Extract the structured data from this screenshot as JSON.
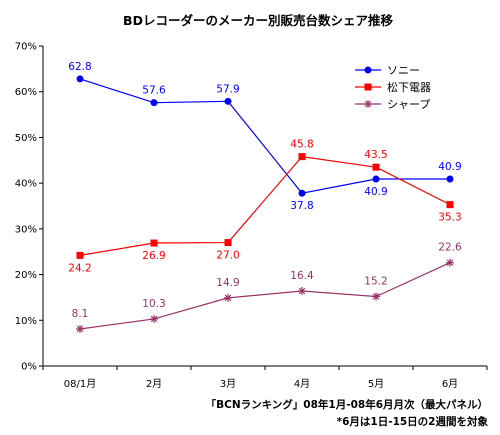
{
  "chart_data": {
    "type": "line",
    "title": "BDレコーダーのメーカー別販売台数シェア推移",
    "categories": [
      "08/1月",
      "2月",
      "3月",
      "4月",
      "5月",
      "6月"
    ],
    "ylim": [
      0,
      70
    ],
    "yticks": [
      "0%",
      "10%",
      "20%",
      "30%",
      "40%",
      "50%",
      "60%",
      "70%"
    ],
    "grid": false,
    "legend": "top-right",
    "series": [
      {
        "name": "ソニー",
        "color": "#0000FF",
        "marker": "circle",
        "values": [
          62.8,
          57.6,
          57.9,
          37.8,
          40.9,
          40.9
        ],
        "labels": [
          "62.8",
          "57.6",
          "57.9",
          "37.8",
          "40.9",
          "40.9"
        ]
      },
      {
        "name": "松下電器",
        "color": "#FF0000",
        "marker": "square",
        "values": [
          24.2,
          26.9,
          27.0,
          45.8,
          43.5,
          35.3
        ],
        "labels": [
          "24.2",
          "26.9",
          "27.0",
          "45.8",
          "43.5",
          "35.3"
        ]
      },
      {
        "name": "シャープ",
        "color": "#993366",
        "marker": "asterisk",
        "values": [
          8.1,
          10.3,
          14.9,
          16.4,
          15.2,
          22.6
        ],
        "labels": [
          "8.1",
          "10.3",
          "14.9",
          "16.4",
          "15.2",
          "22.6"
        ]
      }
    ],
    "notes": [
      "「BCNランキング」08年1月-08年6月月次（最大パネル）",
      "*6月は1日-15日の2週間を対象"
    ]
  }
}
